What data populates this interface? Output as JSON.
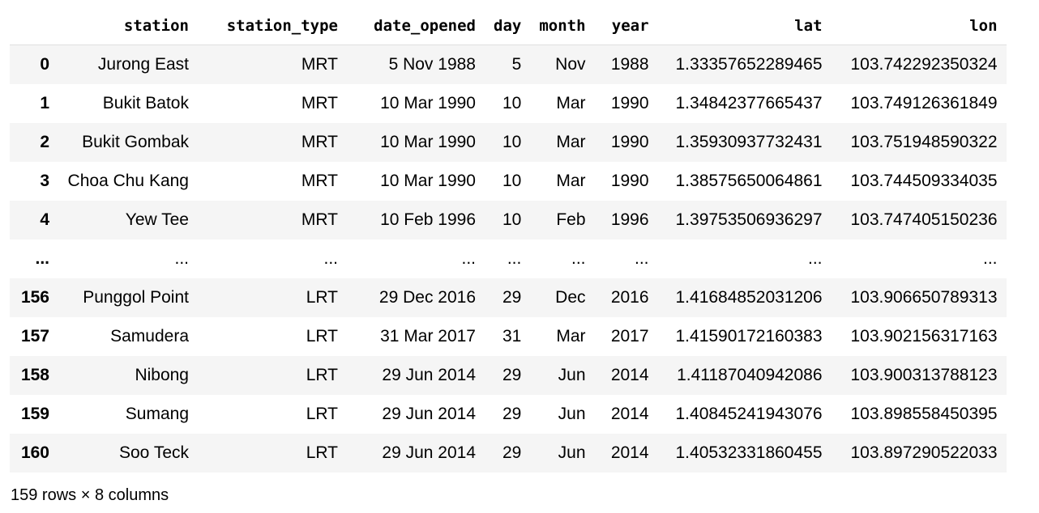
{
  "table": {
    "columns": [
      "station",
      "station_type",
      "date_opened",
      "day",
      "month",
      "year",
      "lat",
      "lon"
    ],
    "rows": [
      {
        "index": "0",
        "station": "Jurong East",
        "station_type": "MRT",
        "date_opened": "5 Nov 1988",
        "day": "5",
        "month": "Nov",
        "year": "1988",
        "lat": "1.33357652289465",
        "lon": "103.742292350324"
      },
      {
        "index": "1",
        "station": "Bukit Batok",
        "station_type": "MRT",
        "date_opened": "10 Mar 1990",
        "day": "10",
        "month": "Mar",
        "year": "1990",
        "lat": "1.34842377665437",
        "lon": "103.749126361849"
      },
      {
        "index": "2",
        "station": "Bukit Gombak",
        "station_type": "MRT",
        "date_opened": "10 Mar 1990",
        "day": "10",
        "month": "Mar",
        "year": "1990",
        "lat": "1.35930937732431",
        "lon": "103.751948590322"
      },
      {
        "index": "3",
        "station": "Choa Chu Kang",
        "station_type": "MRT",
        "date_opened": "10 Mar 1990",
        "day": "10",
        "month": "Mar",
        "year": "1990",
        "lat": "1.38575650064861",
        "lon": "103.744509334035"
      },
      {
        "index": "4",
        "station": "Yew Tee",
        "station_type": "MRT",
        "date_opened": "10 Feb 1996",
        "day": "10",
        "month": "Feb",
        "year": "1996",
        "lat": "1.39753506936297",
        "lon": "103.747405150236"
      },
      {
        "index": "...",
        "station": "...",
        "station_type": "...",
        "date_opened": "...",
        "day": "...",
        "month": "...",
        "year": "...",
        "lat": "...",
        "lon": "..."
      },
      {
        "index": "156",
        "station": "Punggol Point",
        "station_type": "LRT",
        "date_opened": "29 Dec 2016",
        "day": "29",
        "month": "Dec",
        "year": "2016",
        "lat": "1.41684852031206",
        "lon": "103.906650789313"
      },
      {
        "index": "157",
        "station": "Samudera",
        "station_type": "LRT",
        "date_opened": "31 Mar 2017",
        "day": "31",
        "month": "Mar",
        "year": "2017",
        "lat": "1.41590172160383",
        "lon": "103.902156317163"
      },
      {
        "index": "158",
        "station": "Nibong",
        "station_type": "LRT",
        "date_opened": "29 Jun 2014",
        "day": "29",
        "month": "Jun",
        "year": "2014",
        "lat": "1.41187040942086",
        "lon": "103.900313788123"
      },
      {
        "index": "159",
        "station": "Sumang",
        "station_type": "LRT",
        "date_opened": "29 Jun 2014",
        "day": "29",
        "month": "Jun",
        "year": "2014",
        "lat": "1.40845241943076",
        "lon": "103.898558450395"
      },
      {
        "index": "160",
        "station": "Soo Teck",
        "station_type": "LRT",
        "date_opened": "29 Jun 2014",
        "day": "29",
        "month": "Jun",
        "year": "2014",
        "lat": "1.40532331860455",
        "lon": "103.897290522033"
      }
    ]
  },
  "footer": {
    "shape_text": "159 rows × 8 columns"
  }
}
